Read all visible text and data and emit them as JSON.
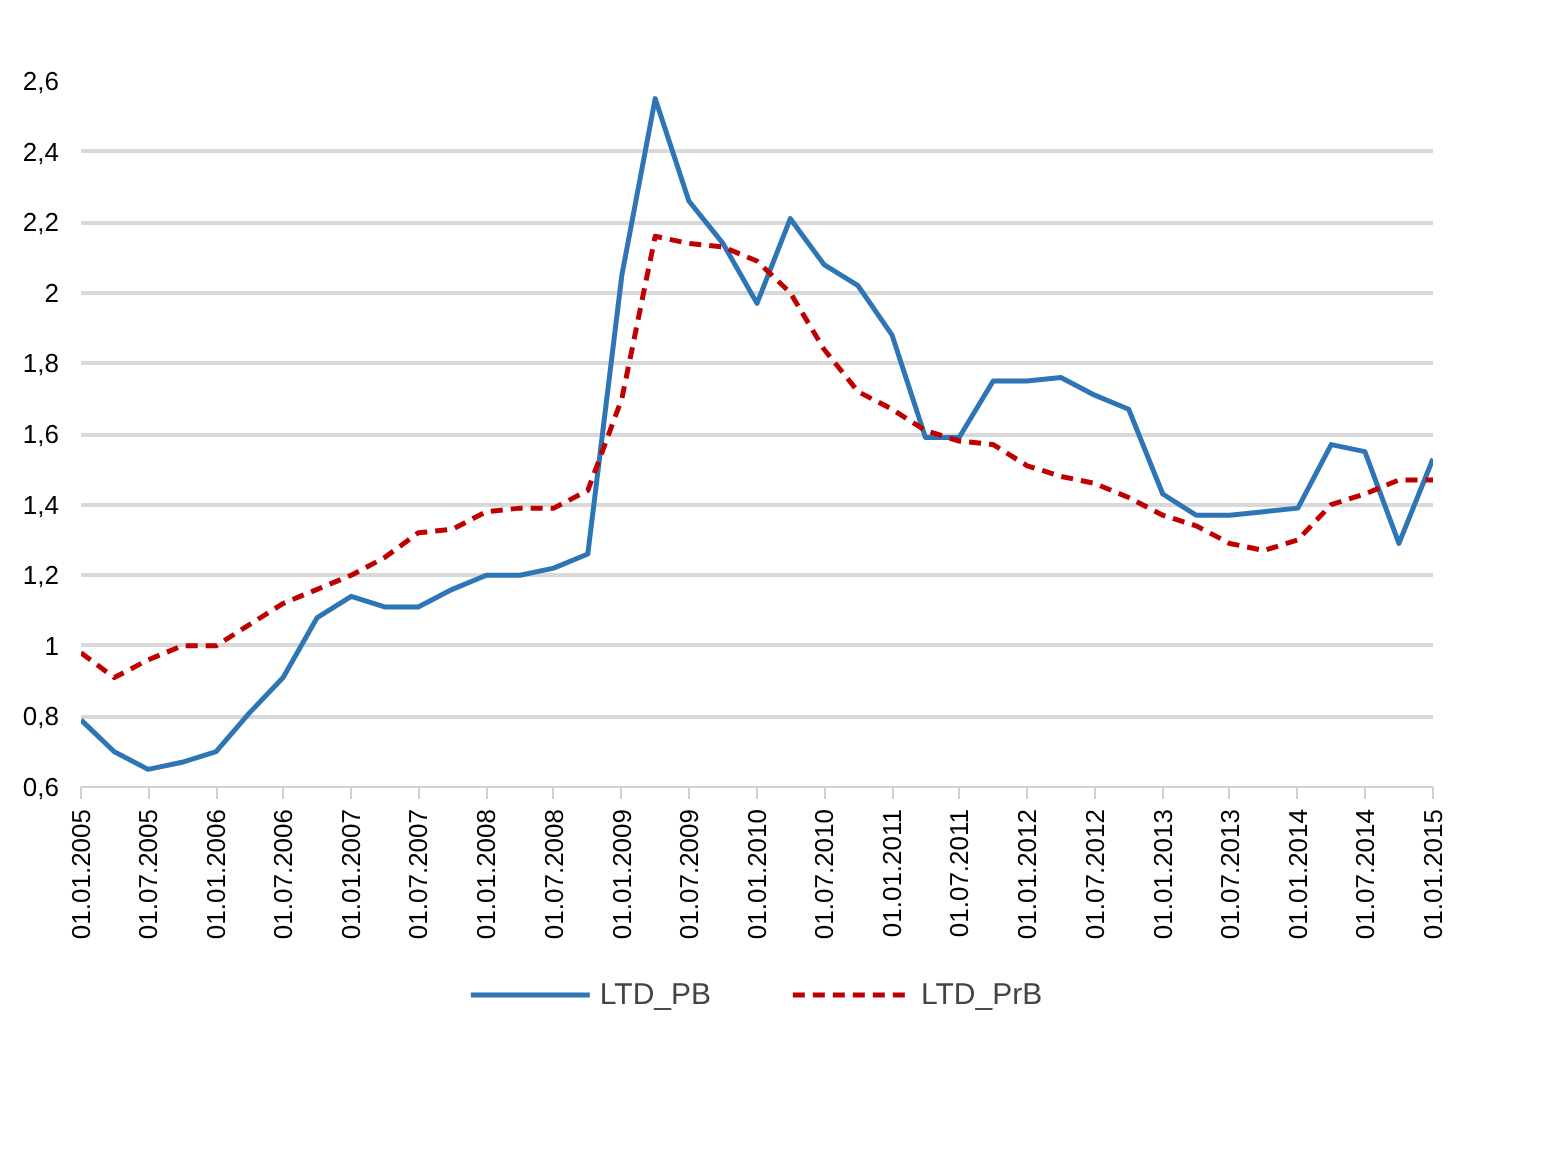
{
  "chart_data": {
    "type": "line",
    "x": [
      "2005-01-01",
      "2005-04-01",
      "2005-07-01",
      "2005-10-01",
      "2006-01-01",
      "2006-04-01",
      "2006-07-01",
      "2006-10-01",
      "2007-01-01",
      "2007-04-01",
      "2007-07-01",
      "2007-10-01",
      "2008-01-01",
      "2008-04-01",
      "2008-07-01",
      "2008-10-01",
      "2009-01-01",
      "2009-04-01",
      "2009-07-01",
      "2009-10-01",
      "2010-01-01",
      "2010-04-01",
      "2010-07-01",
      "2010-10-01",
      "2011-01-01",
      "2011-04-01",
      "2011-07-01",
      "2011-10-01",
      "2012-01-01",
      "2012-04-01",
      "2012-07-01",
      "2012-10-01",
      "2013-01-01",
      "2013-04-01",
      "2013-07-01",
      "2013-10-01",
      "2014-01-01",
      "2014-04-01",
      "2014-07-01",
      "2014-10-01",
      "2015-01-01"
    ],
    "series": [
      {
        "name": "LTD_PB",
        "color": "#2e75b6",
        "line_style": "solid",
        "values": [
          0.79,
          0.7,
          0.65,
          0.67,
          0.7,
          0.81,
          0.91,
          1.08,
          1.14,
          1.11,
          1.11,
          1.16,
          1.2,
          1.2,
          1.22,
          1.26,
          2.05,
          2.55,
          2.26,
          2.14,
          1.97,
          2.21,
          2.08,
          2.02,
          1.88,
          1.59,
          1.59,
          1.75,
          1.75,
          1.76,
          1.71,
          1.67,
          1.43,
          1.37,
          1.37,
          1.38,
          1.39,
          1.57,
          1.55,
          1.29,
          1.53
        ]
      },
      {
        "name": "LTD_PrB",
        "color": "#c00000",
        "line_style": "dashed",
        "values": [
          0.98,
          0.91,
          0.96,
          1.0,
          1.0,
          1.06,
          1.12,
          1.16,
          1.2,
          1.25,
          1.32,
          1.33,
          1.38,
          1.39,
          1.39,
          1.44,
          1.7,
          2.16,
          2.14,
          2.13,
          2.09,
          2.0,
          1.84,
          1.72,
          1.67,
          1.61,
          1.58,
          1.57,
          1.51,
          1.48,
          1.46,
          1.42,
          1.37,
          1.34,
          1.29,
          1.27,
          1.3,
          1.4,
          1.43,
          1.47,
          1.47
        ]
      }
    ],
    "xlim": [
      "2005-01-01",
      "2015-01-01"
    ],
    "xticks": [
      {
        "value": "2005-01-01",
        "label": "01.01.2005"
      },
      {
        "value": "2005-07-01",
        "label": "01.07.2005"
      },
      {
        "value": "2006-01-01",
        "label": "01.01.2006"
      },
      {
        "value": "2006-07-01",
        "label": "01.07.2006"
      },
      {
        "value": "2007-01-01",
        "label": "01.01.2007"
      },
      {
        "value": "2007-07-01",
        "label": "01.07.2007"
      },
      {
        "value": "2008-01-01",
        "label": "01.01.2008"
      },
      {
        "value": "2008-07-01",
        "label": "01.07.2008"
      },
      {
        "value": "2009-01-01",
        "label": "01.01.2009"
      },
      {
        "value": "2009-07-01",
        "label": "01.07.2009"
      },
      {
        "value": "2010-01-01",
        "label": "01.01.2010"
      },
      {
        "value": "2010-07-01",
        "label": "01.07.2010"
      },
      {
        "value": "2011-01-01",
        "label": "01.01.2011"
      },
      {
        "value": "2011-07-01",
        "label": "01.07.2011"
      },
      {
        "value": "2012-01-01",
        "label": "01.01.2012"
      },
      {
        "value": "2012-07-01",
        "label": "01.07.2012"
      },
      {
        "value": "2013-01-01",
        "label": "01.01.2013"
      },
      {
        "value": "2013-07-01",
        "label": "01.07.2013"
      },
      {
        "value": "2014-01-01",
        "label": "01.01.2014"
      },
      {
        "value": "2014-07-01",
        "label": "01.07.2014"
      },
      {
        "value": "2015-01-01",
        "label": "01.01.2015"
      }
    ],
    "ylim": [
      0.6,
      2.6
    ],
    "yticks": [
      {
        "value": 0.6,
        "label": "0,6"
      },
      {
        "value": 0.8,
        "label": "0,8"
      },
      1,
      {
        "value": 1.2,
        "label": "1,2"
      },
      {
        "value": 1.4,
        "label": "1,4"
      },
      {
        "value": 1.6,
        "label": "1,6"
      },
      {
        "value": 1.8,
        "label": "1,8"
      },
      2,
      {
        "value": 2.2,
        "label": "2,2"
      },
      {
        "value": 2.4,
        "label": "2,4"
      },
      {
        "value": 2.6,
        "label": "2,6"
      }
    ],
    "grid": "y",
    "legend": "bottom",
    "marker": "none"
  }
}
